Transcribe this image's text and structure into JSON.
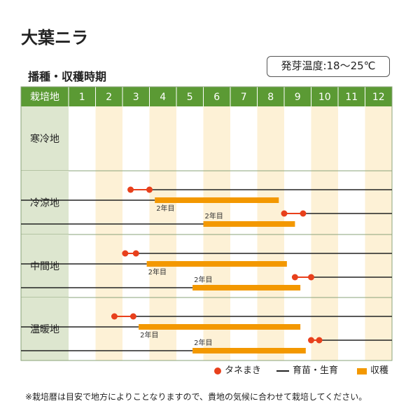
{
  "title": "大葉ニラ",
  "temperature_note": "発芽温度:18～25℃",
  "subtitle": "播種・収穫時期",
  "header_label": "栽培地",
  "colors": {
    "header_green": "#5b9a34",
    "region_bg": "#dde6cf",
    "stripe": "#fdf1d6",
    "dot": "#e8401c",
    "line": "#222222",
    "bar": "#f39800"
  },
  "legend": {
    "sowing": "タネまき",
    "growing": "育苗・生育",
    "harvest": "収穫"
  },
  "footnote": "※栽培暦は目安で地方によりことなりますので、貴地の気候に合わせて栽培してください。",
  "chart_data": {
    "type": "table",
    "months": [
      "1",
      "2",
      "3",
      "4",
      "5",
      "6",
      "7",
      "8",
      "9",
      "10",
      "11",
      "12"
    ],
    "regions": [
      {
        "name": "寒冷地",
        "rows": []
      },
      {
        "name": "冷涼地",
        "rows": [
          {
            "sow": [
              3.3,
              4.0
            ],
            "grow": [
              4.0,
              12.5
            ],
            "grow_start_left": true,
            "grow_from": 1.0,
            "grow_to": 4.4,
            "harvest": [
              4.2,
              8.8
            ],
            "label": "2年目",
            "label_at": 4.2
          },
          {
            "sow": [
              9.0,
              9.7
            ],
            "grow": [
              9.7,
              12.5
            ],
            "harvest": [
              6.0,
              9.4
            ],
            "label": "2年目",
            "label_at": 6.0,
            "line_from": 1.0,
            "line_to": 6.0
          }
        ]
      },
      {
        "name": "中間地",
        "rows": [
          {
            "sow": [
              3.1,
              3.5
            ],
            "grow": [
              3.5,
              12.5
            ],
            "grow_from": 1.0,
            "grow_to": 3.9,
            "harvest": [
              3.9,
              9.1
            ],
            "label": "2年目",
            "label_at": 3.9
          },
          {
            "sow": [
              9.4,
              10.0
            ],
            "grow": [
              10.0,
              12.5
            ],
            "harvest": [
              5.6,
              9.6
            ],
            "label": "2年目",
            "label_at": 5.6,
            "line_from": 1.0,
            "line_to": 5.6
          }
        ]
      },
      {
        "name": "温暖地",
        "rows": [
          {
            "sow": [
              2.7,
              3.4
            ],
            "grow": [
              3.4,
              12.5
            ],
            "grow_from": 1.0,
            "grow_to": 3.6,
            "harvest": [
              3.6,
              9.6
            ],
            "label": "2年目",
            "label_at": 3.6
          },
          {
            "sow": [
              10.0,
              10.3
            ],
            "grow": [
              10.3,
              12.5
            ],
            "harvest": [
              5.6,
              9.8
            ],
            "label": "2年目",
            "label_at": 5.6,
            "line_from": 1.0,
            "line_to": 5.6
          }
        ]
      }
    ]
  }
}
